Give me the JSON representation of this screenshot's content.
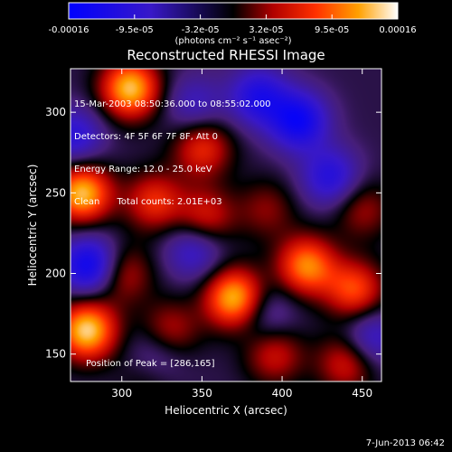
{
  "chart_data": {
    "type": "heatmap",
    "title": "Reconstructed RHESSI Image",
    "xlabel": "Heliocentric X (arcsec)",
    "ylabel": "Heliocentric Y (arcsec)",
    "xlim": [
      268,
      462
    ],
    "ylim": [
      133,
      327
    ],
    "xticks": [
      300,
      350,
      400,
      450
    ],
    "yticks": [
      150,
      200,
      250,
      300
    ],
    "colorbar": {
      "ticks": [
        "-0.00016",
        "-9.5e-05",
        "-3.2e-05",
        "3.2e-05",
        "9.5e-05",
        "0.00016"
      ],
      "range": [
        -0.00016,
        0.00016
      ],
      "unit_label": "(photons cm⁻² s⁻¹ asec⁻²)"
    },
    "annotations": [
      "15-Mar-2003 08:50:36.000 to 08:55:02.000",
      "Detectors: 4F 5F 6F 7F 8F, Att 0",
      "Energy Range: 12.0 - 25.0 keV",
      "Clean      Total counts: 2.01E+03"
    ],
    "peak_label": "Position of Peak = [286,165]",
    "peak": [
      286,
      165
    ],
    "blobs": [
      {
        "x": 278,
        "y": 165,
        "v": 1.0
      },
      {
        "x": 275,
        "y": 250,
        "v": 0.95
      },
      {
        "x": 305,
        "y": 315,
        "v": 0.95
      },
      {
        "x": 370,
        "y": 185,
        "v": 0.95
      },
      {
        "x": 415,
        "y": 205,
        "v": 0.8
      },
      {
        "x": 445,
        "y": 190,
        "v": 0.65
      },
      {
        "x": 320,
        "y": 245,
        "v": 0.55
      },
      {
        "x": 350,
        "y": 278,
        "v": 0.55
      },
      {
        "x": 352,
        "y": 235,
        "v": 0.5
      },
      {
        "x": 300,
        "y": 200,
        "v": 0.45
      },
      {
        "x": 330,
        "y": 165,
        "v": 0.4
      },
      {
        "x": 318,
        "y": 140,
        "v": 0.55
      },
      {
        "x": 395,
        "y": 150,
        "v": 0.45
      },
      {
        "x": 440,
        "y": 145,
        "v": 0.5
      },
      {
        "x": 450,
        "y": 240,
        "v": 0.35
      },
      {
        "x": 390,
        "y": 240,
        "v": 0.3
      },
      {
        "x": 385,
        "y": 310,
        "v": -0.6
      },
      {
        "x": 410,
        "y": 295,
        "v": -0.75
      },
      {
        "x": 280,
        "y": 205,
        "v": -0.8
      },
      {
        "x": 320,
        "y": 145,
        "v": -0.65
      },
      {
        "x": 430,
        "y": 260,
        "v": -0.55
      },
      {
        "x": 345,
        "y": 215,
        "v": -0.45
      },
      {
        "x": 270,
        "y": 285,
        "v": -0.5
      },
      {
        "x": 455,
        "y": 160,
        "v": -0.45
      },
      {
        "x": 390,
        "y": 175,
        "v": -0.3
      },
      {
        "x": 345,
        "y": 305,
        "v": -0.35
      }
    ]
  },
  "footer": {
    "date": "7-Jun-2013 06:42"
  }
}
